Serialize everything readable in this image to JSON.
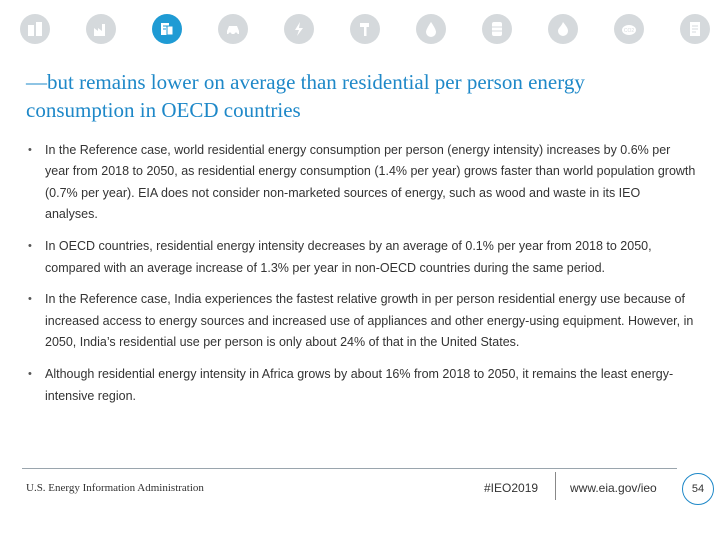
{
  "icons": [
    "buildings-icon",
    "industry-icon",
    "document-building-icon",
    "car-icon",
    "lightning-icon",
    "hammer-icon",
    "oil-drop-icon",
    "barrel-icon",
    "flame-icon",
    "co2-icon",
    "report-icon"
  ],
  "colors": {
    "accent": "#1e88c8",
    "icon_active": "#1f9bd4",
    "icon_inactive": "#d5d9dc"
  },
  "title": "—but remains lower on average than residential per person energy consumption in OECD countries",
  "bullets": [
    "In the Reference case, world residential energy consumption per person (energy intensity) increases by 0.6% per year from 2018 to 2050, as residential energy consumption (1.4% per year) grows faster than world population growth (0.7% per year). EIA does not consider non-marketed sources of energy, such as wood and waste in its IEO analyses.",
    "In OECD countries, residential energy intensity decreases by an average of 0.1% per year from 2018 to 2050, compared with an average increase of 1.3% per year in non-OECD countries during the same period.",
    "In the Reference case, India experiences the fastest relative growth in per person residential energy use because of increased access to energy sources and increased use of appliances and other energy-using equipment. However, in 2050, India’s residential use per person is only about 24% of that in the United States.",
    "Although residential energy intensity in Africa grows by about 16% from 2018 to 2050, it remains the least energy-intensive region."
  ],
  "footer": {
    "org": "U.S. Energy Information Administration",
    "hashtag": "#IEO2019",
    "url": "www.eia.gov/ieo",
    "page": "54"
  }
}
